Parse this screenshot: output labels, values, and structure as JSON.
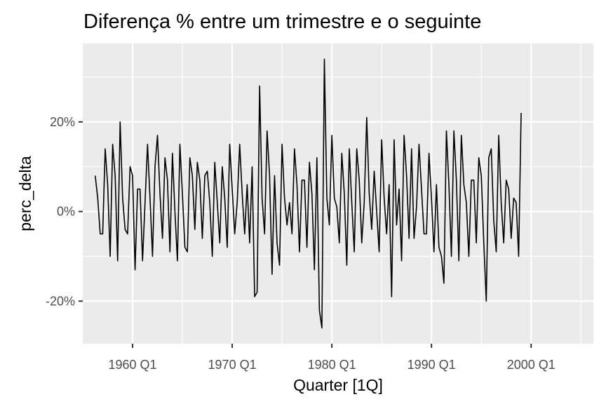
{
  "chart_data": {
    "type": "line",
    "title": "Diferença % entre um trimestre e o seguinte",
    "xlabel": "Quarter [1Q]",
    "ylabel": "perc_delta",
    "x_ticks": [
      {
        "value": 1960,
        "label": "1960 Q1"
      },
      {
        "value": 1970,
        "label": "1970 Q1"
      },
      {
        "value": 1980,
        "label": "1980 Q1"
      },
      {
        "value": 1990,
        "label": "1990 Q1"
      },
      {
        "value": 2000,
        "label": "2000 Q1"
      }
    ],
    "y_ticks": [
      {
        "value": -20,
        "label": "-20%"
      },
      {
        "value": 0,
        "label": "0%"
      },
      {
        "value": 20,
        "label": "20%"
      }
    ],
    "xlim": [
      1955.0,
      2006.25
    ],
    "ylim": [
      -29.5,
      37.5
    ],
    "grid": true,
    "background": "#ebebeb",
    "line_color": "#000000",
    "x_start": 1956.25,
    "x_step": 0.25,
    "values": [
      8,
      3,
      -5,
      -5,
      14,
      6,
      -10,
      15,
      8,
      -11,
      20,
      3,
      -4,
      -5,
      10,
      8,
      -13,
      5,
      5,
      -11,
      2,
      15,
      3,
      -10,
      10,
      17,
      4,
      -6,
      12,
      7,
      -9,
      13,
      0,
      -11,
      15,
      4,
      -8,
      -9,
      12,
      8,
      -4,
      11,
      7,
      -6,
      8,
      9,
      2,
      -10,
      11,
      2,
      -7,
      10,
      3,
      -8,
      15,
      5,
      -5,
      2,
      15,
      4,
      -5,
      6,
      -7,
      10,
      -19,
      -18,
      28,
      3,
      -5,
      18,
      8,
      -14,
      8,
      -7,
      -12,
      15,
      3,
      -3,
      2,
      -5,
      14,
      6,
      -9,
      7,
      7,
      -8,
      11,
      4,
      -13,
      12,
      -22,
      -26,
      34,
      3,
      -3,
      17,
      3,
      1,
      -7,
      13,
      4,
      -12,
      14,
      2,
      -9,
      14,
      7,
      -7,
      2,
      21,
      4,
      -4,
      9,
      0,
      -9,
      16,
      3,
      -5,
      6,
      -19,
      16,
      -3,
      5,
      -11,
      17,
      8,
      -6,
      14,
      -6,
      1,
      15,
      5,
      -5,
      -5,
      13,
      3,
      -9,
      6,
      -8,
      -10,
      -16,
      18,
      6,
      -10,
      18,
      7,
      -11,
      17,
      6,
      2,
      -10,
      7,
      7,
      -7,
      12,
      8,
      -7,
      -20,
      12,
      14,
      -2,
      -9,
      17,
      2,
      -7,
      7,
      5,
      -6,
      3,
      2,
      -10,
      22
    ]
  }
}
